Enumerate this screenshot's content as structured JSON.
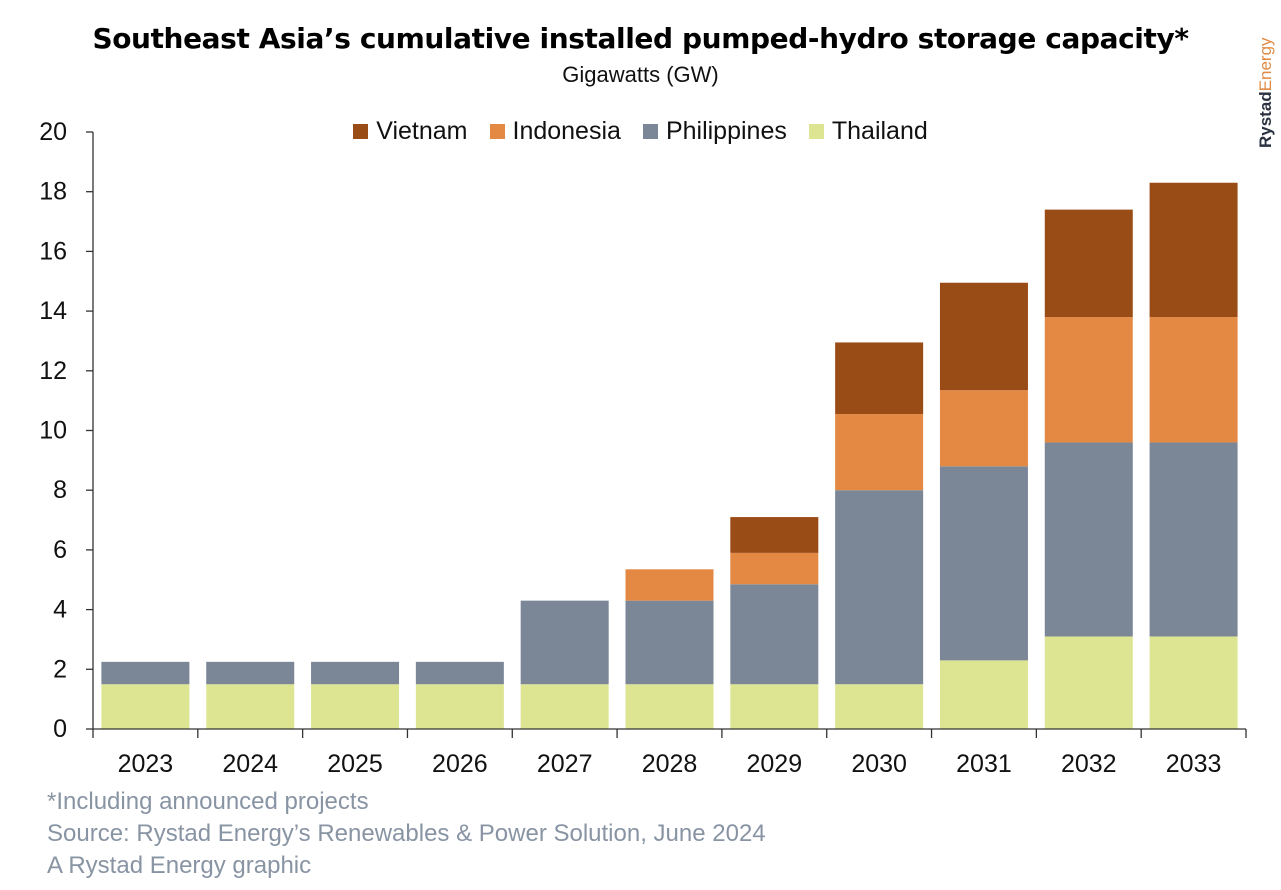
{
  "header": {
    "title": "Southeast Asia’s cumulative installed pumped-hydro storage capacity*",
    "subtitle": "Gigawatts (GW)"
  },
  "brand": {
    "part1": "Rystad",
    "part2": "Energy",
    "color1": "#2b3240",
    "color2": "#e08b45"
  },
  "footnotes": {
    "note": "*Including announced projects",
    "source": "Source: Rystad Energy’s Renewables & Power Solution, June 2024",
    "credit": "A Rystad Energy graphic"
  },
  "chart_data": {
    "type": "bar",
    "stacked": true,
    "categories": [
      "2023",
      "2024",
      "2025",
      "2026",
      "2027",
      "2028",
      "2029",
      "2030",
      "2031",
      "2032",
      "2033"
    ],
    "series": [
      {
        "name": "Thailand",
        "color": "#dde592",
        "values": [
          1.5,
          1.5,
          1.5,
          1.5,
          1.5,
          1.5,
          1.5,
          1.5,
          2.3,
          3.1,
          3.1
        ]
      },
      {
        "name": "Philippines",
        "color": "#7b8797",
        "values": [
          0.75,
          0.75,
          0.75,
          0.75,
          2.8,
          2.8,
          3.35,
          6.5,
          6.5,
          6.5,
          6.5
        ]
      },
      {
        "name": "Indonesia",
        "color": "#e48944",
        "values": [
          0,
          0,
          0,
          0,
          0,
          1.05,
          1.05,
          2.55,
          2.55,
          4.2,
          4.2
        ]
      },
      {
        "name": "Vietnam",
        "color": "#9a4c17",
        "values": [
          0,
          0,
          0,
          0,
          0,
          0,
          1.2,
          2.4,
          3.6,
          3.6,
          4.5
        ]
      }
    ],
    "legend_order": [
      "Vietnam",
      "Indonesia",
      "Philippines",
      "Thailand"
    ],
    "ylim": [
      0,
      20
    ],
    "yticks": [
      "0",
      "2",
      "4",
      "6",
      "8",
      "10",
      "12",
      "14",
      "16",
      "18",
      "20"
    ],
    "xlabel": "",
    "ylabel": "",
    "grid": false,
    "legend_position": "top-center"
  }
}
